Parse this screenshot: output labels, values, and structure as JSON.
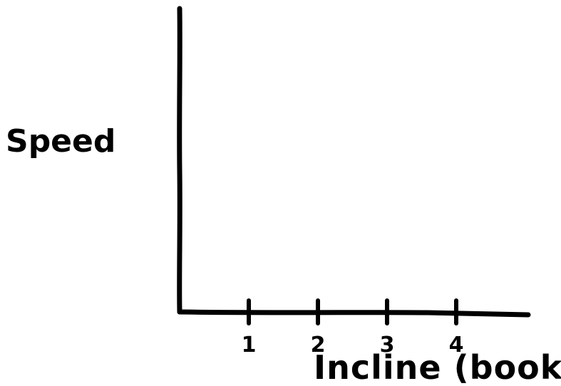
{
  "chart_data": {
    "type": "line",
    "title": "",
    "xlabel": "Incline (books)",
    "ylabel": "Speed",
    "x_ticks": [
      "1",
      "2",
      "3",
      "4"
    ],
    "xlim": [
      0,
      5
    ],
    "series": [],
    "grid": false,
    "legend": "none",
    "style": "hand-drawn, black ink on white"
  }
}
